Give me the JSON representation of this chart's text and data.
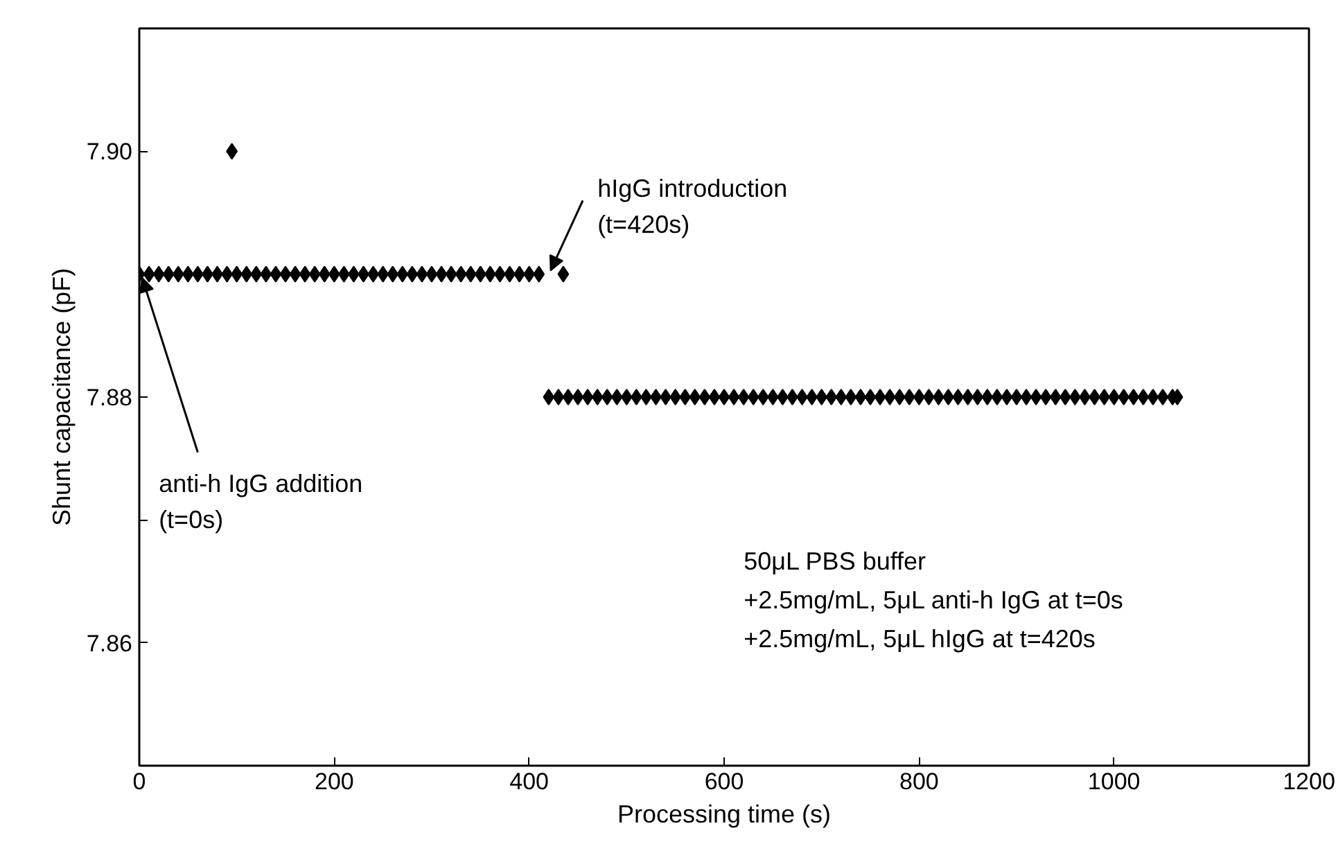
{
  "chart_data": {
    "type": "scatter",
    "xlabel": "Processing time (s)",
    "ylabel": "Shunt capacitance (pF)",
    "xlim": [
      0,
      1200
    ],
    "ylim": [
      7.85,
      7.91
    ],
    "xticks": [
      0,
      200,
      400,
      600,
      800,
      1000,
      1200
    ],
    "yticks": [
      7.86,
      {
        "value": 7.87,
        "label": null
      },
      7.88,
      {
        "value": 7.89,
        "label": null
      },
      {
        "value": 7.9,
        "label": "7.90"
      }
    ],
    "grid": false,
    "marker": "diamond",
    "series": [
      {
        "color": "#000000",
        "x": [
          0,
          10,
          20,
          30,
          40,
          50,
          60,
          70,
          80,
          90,
          100,
          110,
          120,
          130,
          140,
          150,
          160,
          170,
          180,
          190,
          200,
          210,
          220,
          230,
          240,
          250,
          260,
          270,
          280,
          290,
          300,
          310,
          320,
          330,
          340,
          350,
          360,
          370,
          380,
          390,
          400,
          410,
          95,
          435,
          420,
          430,
          440,
          450,
          460,
          470,
          480,
          490,
          500,
          510,
          520,
          530,
          540,
          550,
          560,
          570,
          580,
          590,
          600,
          610,
          620,
          630,
          640,
          650,
          660,
          670,
          680,
          690,
          700,
          710,
          720,
          730,
          740,
          750,
          760,
          770,
          780,
          790,
          800,
          810,
          820,
          830,
          840,
          850,
          860,
          870,
          880,
          890,
          900,
          910,
          920,
          930,
          940,
          950,
          960,
          970,
          980,
          990,
          1000,
          1010,
          1020,
          1030,
          1040,
          1050,
          1060,
          1065
        ],
        "values": [
          7.89,
          7.89,
          7.89,
          7.89,
          7.89,
          7.89,
          7.89,
          7.89,
          7.89,
          7.89,
          7.89,
          7.89,
          7.89,
          7.89,
          7.89,
          7.89,
          7.89,
          7.89,
          7.89,
          7.89,
          7.89,
          7.89,
          7.89,
          7.89,
          7.89,
          7.89,
          7.89,
          7.89,
          7.89,
          7.89,
          7.89,
          7.89,
          7.89,
          7.89,
          7.89,
          7.89,
          7.89,
          7.89,
          7.89,
          7.89,
          7.89,
          7.89,
          7.9,
          7.89,
          7.88,
          7.88,
          7.88,
          7.88,
          7.88,
          7.88,
          7.88,
          7.88,
          7.88,
          7.88,
          7.88,
          7.88,
          7.88,
          7.88,
          7.88,
          7.88,
          7.88,
          7.88,
          7.88,
          7.88,
          7.88,
          7.88,
          7.88,
          7.88,
          7.88,
          7.88,
          7.88,
          7.88,
          7.88,
          7.88,
          7.88,
          7.88,
          7.88,
          7.88,
          7.88,
          7.88,
          7.88,
          7.88,
          7.88,
          7.88,
          7.88,
          7.88,
          7.88,
          7.88,
          7.88,
          7.88,
          7.88,
          7.88,
          7.88,
          7.88,
          7.88,
          7.88,
          7.88,
          7.88,
          7.88,
          7.88,
          7.88,
          7.88,
          7.88,
          7.88,
          7.88,
          7.88,
          7.88,
          7.88,
          7.88,
          7.88
        ]
      }
    ],
    "annotations": [
      {
        "text": "hIgG introduction\n(t=420s)",
        "x": 420,
        "y": 7.89
      },
      {
        "text": "anti-h IgG addition\n(t=0s)",
        "x": 0,
        "y": 7.89
      },
      "50μL PBS buffer\n+2.5mg/mL, 5μL anti-h IgG at t=0s\n+2.5mg/mL, 5μL hIgG at t=420s"
    ]
  }
}
